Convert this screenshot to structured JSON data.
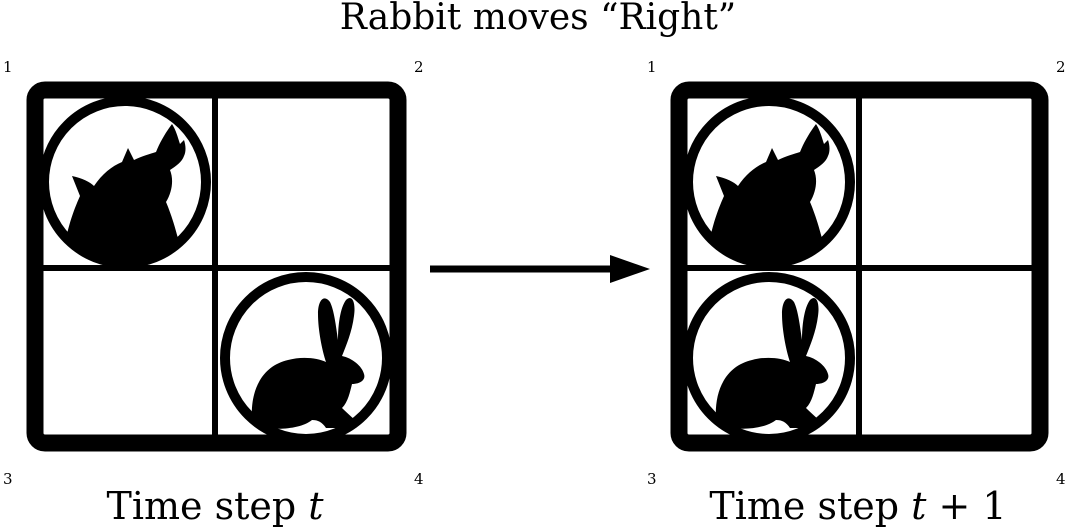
{
  "title": "Rabbit moves “Right”",
  "panels": [
    {
      "caption_prefix": "Time step ",
      "caption_var": "t",
      "caption_suffix": "",
      "corners": [
        "1",
        "2",
        "3",
        "4"
      ],
      "wolf_cell": "1",
      "rabbit_cell": "4"
    },
    {
      "caption_prefix": "Time step ",
      "caption_var": "t",
      "caption_suffix": " + 1",
      "corners": [
        "1",
        "2",
        "3",
        "4"
      ],
      "wolf_cell": "1",
      "rabbit_cell": "3"
    }
  ],
  "icons": {
    "wolf": "wolf-icon",
    "rabbit": "rabbit-icon",
    "arrow": "right-arrow"
  },
  "colors": {
    "ink": "#000000",
    "background": "#ffffff"
  }
}
